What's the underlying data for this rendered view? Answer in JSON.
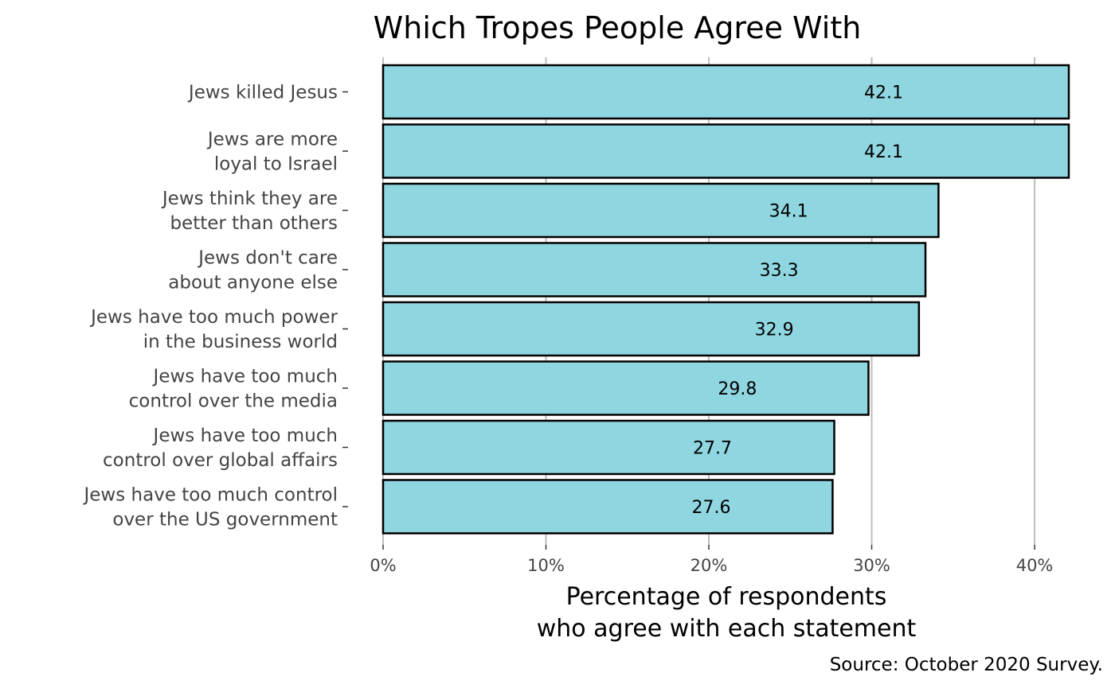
{
  "chart_data": {
    "type": "bar",
    "orientation": "horizontal",
    "title": "Which Tropes People Agree With",
    "xlabel": [
      "Percentage of respondents",
      "who agree with each statement"
    ],
    "caption": "Source: October 2020 Survey.",
    "xlim": [
      0,
      42.1
    ],
    "x_ticks": [
      0,
      10,
      20,
      30,
      40
    ],
    "x_tick_labels": [
      "0%",
      "10%",
      "20%",
      "30%",
      "40%"
    ],
    "grid": "vertical-major",
    "legend": "none",
    "categories": [
      [
        "Jews killed Jesus"
      ],
      [
        "Jews are more",
        "loyal to Israel"
      ],
      [
        "Jews think they are",
        "better than others"
      ],
      [
        "Jews don't care",
        "about anyone else"
      ],
      [
        "Jews have too much power",
        "in the business world"
      ],
      [
        "Jews have too much",
        "control over the media"
      ],
      [
        "Jews have too much",
        "control over global affairs"
      ],
      [
        "Jews have too much control",
        "over the US government"
      ]
    ],
    "values": [
      42.1,
      42.1,
      34.1,
      33.3,
      32.9,
      29.8,
      27.7,
      27.6
    ],
    "value_labels": [
      "42.1",
      "42.1",
      "34.1",
      "33.3",
      "32.9",
      "29.8",
      "27.7",
      "27.6"
    ],
    "colors": {
      "bar_fill": "#8fd6e0",
      "bar_stroke": "#000000",
      "grid": "#bdbdbd"
    }
  }
}
